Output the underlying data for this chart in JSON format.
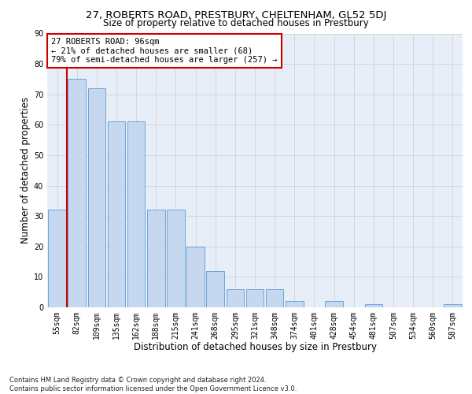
{
  "title_line1": "27, ROBERTS ROAD, PRESTBURY, CHELTENHAM, GL52 5DJ",
  "title_line2": "Size of property relative to detached houses in Prestbury",
  "xlabel": "Distribution of detached houses by size in Prestbury",
  "ylabel": "Number of detached properties",
  "footnote": "Contains HM Land Registry data © Crown copyright and database right 2024.\nContains public sector information licensed under the Open Government Licence v3.0.",
  "bar_labels": [
    "55sqm",
    "82sqm",
    "109sqm",
    "135sqm",
    "162sqm",
    "188sqm",
    "215sqm",
    "241sqm",
    "268sqm",
    "295sqm",
    "321sqm",
    "348sqm",
    "374sqm",
    "401sqm",
    "428sqm",
    "454sqm",
    "481sqm",
    "507sqm",
    "534sqm",
    "560sqm",
    "587sqm"
  ],
  "bar_values": [
    32,
    75,
    72,
    61,
    61,
    32,
    32,
    20,
    12,
    6,
    6,
    6,
    2,
    0,
    2,
    0,
    1,
    0,
    0,
    0,
    1
  ],
  "bar_color": "#c5d8f0",
  "bar_edge_color": "#5b9bd5",
  "annotation_text": "27 ROBERTS ROAD: 96sqm\n← 21% of detached houses are smaller (68)\n79% of semi-detached houses are larger (257) →",
  "annotation_box_color": "#ffffff",
  "annotation_box_edge": "#cc0000",
  "vline_x": 0.5,
  "vline_color": "#cc0000",
  "ylim": [
    0,
    90
  ],
  "yticks": [
    0,
    10,
    20,
    30,
    40,
    50,
    60,
    70,
    80,
    90
  ],
  "grid_color": "#cccccc",
  "bg_color": "#e8eef8",
  "title_fontsize": 9.5,
  "subtitle_fontsize": 8.5,
  "xlabel_fontsize": 8.5,
  "ylabel_fontsize": 8.5,
  "tick_fontsize": 7,
  "annot_fontsize": 7.5,
  "footer_fontsize": 6
}
